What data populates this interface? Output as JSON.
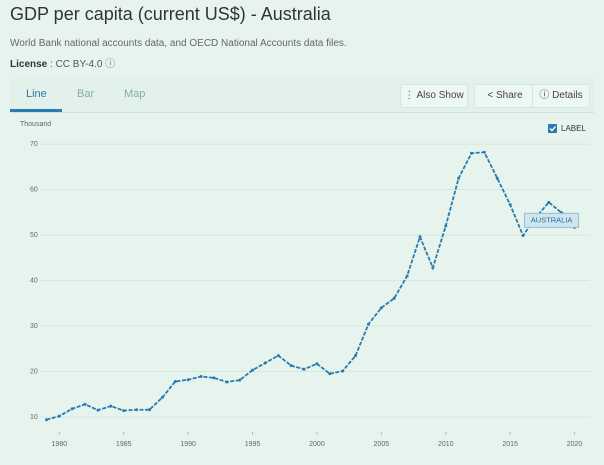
{
  "header": {
    "title": "GDP per capita (current US$) - Australia",
    "source": "World Bank national accounts data, and OECD National Accounts data files.",
    "license_label": "License",
    "license_value": ": CC BY-4.0"
  },
  "tabs": [
    "Line",
    "Bar",
    "Map"
  ],
  "buttons": [
    "Also Show",
    "Share",
    "Details"
  ],
  "label_toggle": "LABEL",
  "chart_data": {
    "type": "line",
    "y_label": "Thousand",
    "x": [
      1979,
      1980,
      1981,
      1982,
      1983,
      1984,
      1985,
      1986,
      1987,
      1988,
      1989,
      1990,
      1991,
      1992,
      1993,
      1994,
      1995,
      1996,
      1997,
      1998,
      1999,
      2000,
      2001,
      2002,
      2003,
      2004,
      2005,
      2006,
      2007,
      2008,
      2009,
      2010,
      2011,
      2012,
      2013,
      2014,
      2015,
      2016,
      2017,
      2018,
      2019,
      2020
    ],
    "series": [
      {
        "name": "AUSTRALIA",
        "color": "#2b7bb0",
        "values": [
          9.4,
          10.2,
          11.8,
          12.8,
          11.5,
          12.4,
          11.4,
          11.6,
          11.6,
          14.3,
          17.8,
          18.2,
          18.9,
          18.6,
          17.7,
          18.1,
          20.3,
          21.9,
          23.5,
          21.3,
          20.5,
          21.7,
          19.5,
          20.1,
          23.5,
          30.4,
          34.0,
          36.1,
          41.0,
          49.6,
          42.8,
          52.0,
          62.5,
          68.0,
          68.2,
          62.5,
          56.7,
          49.9,
          53.9,
          57.2,
          54.9,
          51.7
        ]
      }
    ],
    "xlim": [
      1978.5,
      2021.2
    ],
    "xticks": [
      1980,
      1985,
      1990,
      1995,
      2000,
      2005,
      2010,
      2015,
      2020
    ],
    "ylim": [
      6.7,
      73.1
    ],
    "yticks": [
      10,
      20,
      30,
      40,
      50,
      60,
      70
    ],
    "grid": true
  }
}
